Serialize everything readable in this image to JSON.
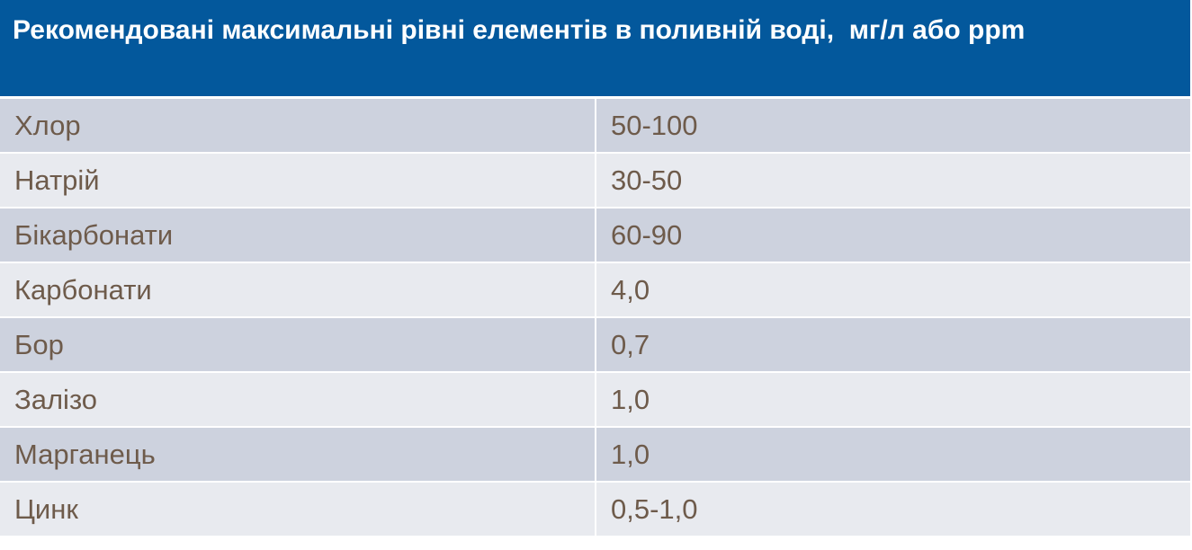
{
  "table": {
    "title": "Рекомендовані максимальні рівні елементів в поливній воді,  мг/л або ppm",
    "rows": [
      [
        "Хлор",
        "50-100"
      ],
      [
        "Натрій",
        "30-50"
      ],
      [
        "Бікарбонати",
        "60-90"
      ],
      [
        "Карбонати",
        "4,0"
      ],
      [
        "Бор",
        "0,7"
      ],
      [
        "Залізо",
        "1,0"
      ],
      [
        "Марганець",
        "1,0"
      ],
      [
        "Цинк",
        "0,5-1,0"
      ]
    ]
  }
}
